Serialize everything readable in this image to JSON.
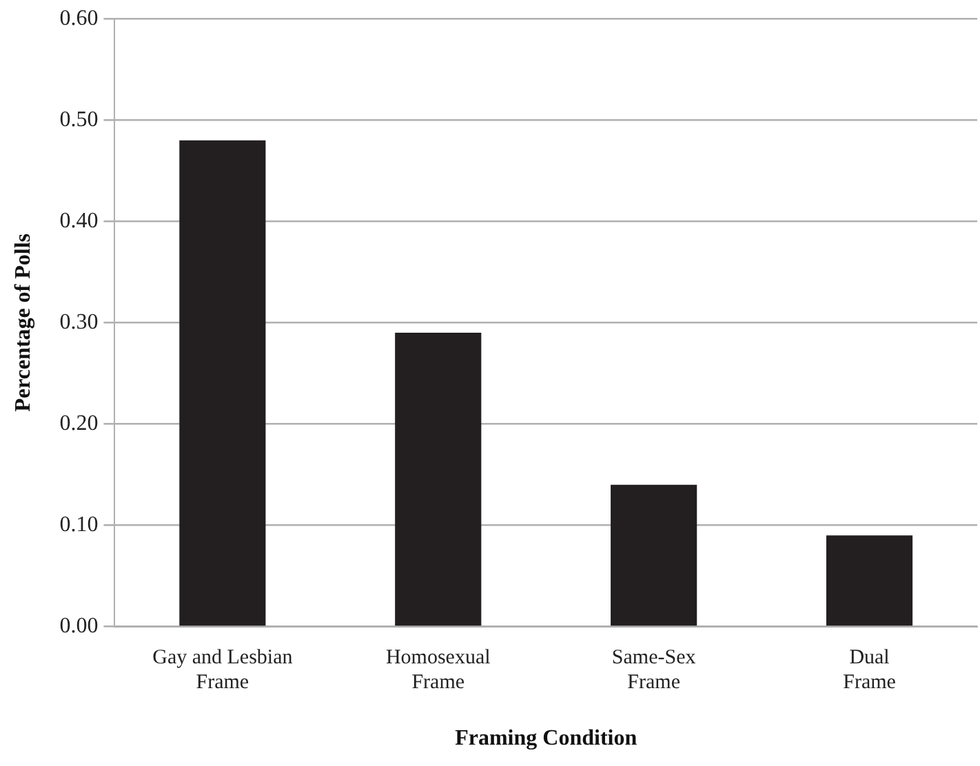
{
  "chart_data": {
    "type": "bar",
    "xlabel": "Framing Condition",
    "ylabel": "Percentage of Polls",
    "categories": [
      "Gay and Lesbian Frame",
      "Homosexual Frame",
      "Same-Sex Frame",
      "Dual Frame"
    ],
    "values": [
      0.48,
      0.29,
      0.14,
      0.09
    ],
    "color": "#231f20",
    "ylim": [
      0,
      0.6
    ],
    "yticks": [
      {
        "value": 0,
        "label": "0.00"
      },
      {
        "value": 0.1,
        "label": "0.10"
      },
      {
        "value": 0.2,
        "label": "0.20"
      },
      {
        "value": 0.3,
        "label": "0.30"
      },
      {
        "value": 0.4,
        "label": "0.40"
      },
      {
        "value": 0.5,
        "label": "0.50"
      },
      {
        "value": 0.6,
        "label": "0.60"
      }
    ],
    "grid": "y",
    "legend": false
  }
}
